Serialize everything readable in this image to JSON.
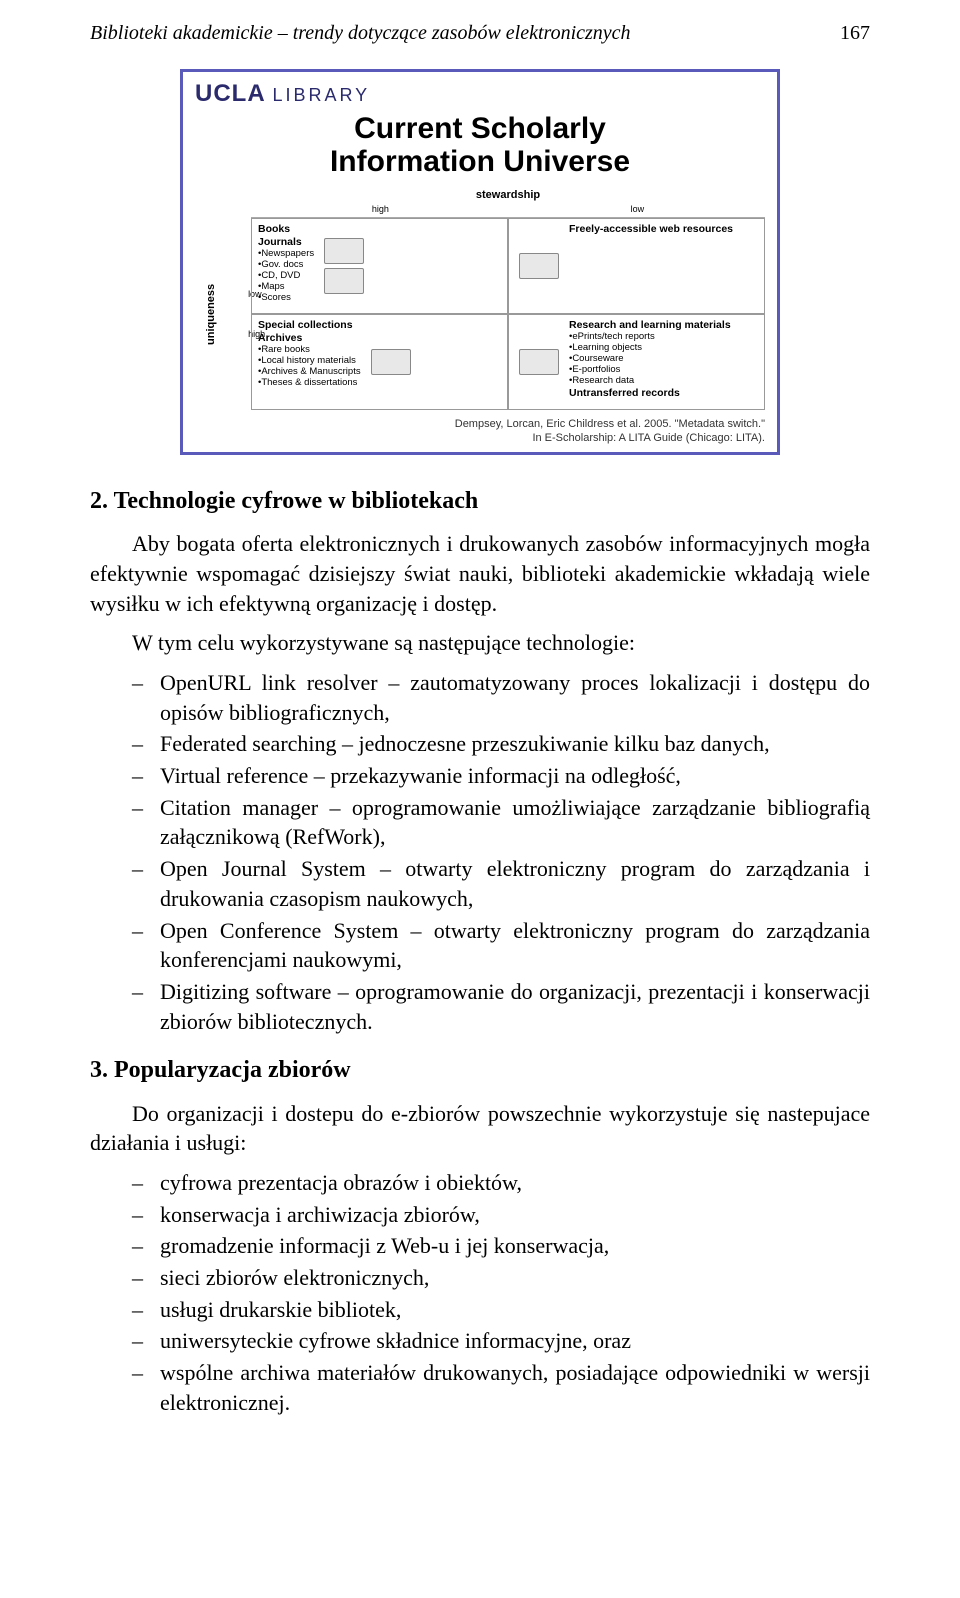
{
  "header": {
    "running_title": "Biblioteki akademickie – trendy dotyczące zasobów elektronicznych",
    "page_number": "167"
  },
  "slide": {
    "logo_main": "UCLA",
    "logo_sub": "LIBRARY",
    "title_line1": "Current Scholarly",
    "title_line2": "Information Universe",
    "axis_stewardship": "stewardship",
    "axis_uniqueness": "uniqueness",
    "scale_high": "high",
    "scale_low": "low",
    "q_tl_heading1": "Books",
    "q_tl_heading2": "Journals",
    "q_tl_items": "•Newspapers\n•Gov. docs\n•CD, DVD\n•Maps\n•Scores",
    "q_tr_heading": "Freely-accessible web resources",
    "q_bl_heading1": "Special collections",
    "q_bl_heading2": "Archives",
    "q_bl_items": "•Rare books\n•Local history materials\n•Archives & Manuscripts\n•Theses & dissertations",
    "q_br_heading1": "Research and learning materials",
    "q_br_items": "•ePrints/tech reports\n•Learning objects\n•Courseware\n•E-portfolios\n•Research data",
    "q_br_heading2": "Untransferred records",
    "citation_line1": "Dempsey, Lorcan, Eric Childress et al. 2005. \"Metadata switch.\"",
    "citation_line2": "In E-Scholarship: A LITA Guide (Chicago: LITA)."
  },
  "section2": {
    "heading": "2. Technologie cyfrowe w bibliotekach",
    "para1": "Aby bogata oferta elektronicznych i drukowanych zasobów informacyjnych mogła efektywnie wspomagać dzisiejszy świat nauki, biblioteki akademickie wkładają wiele wysiłku w ich efektywną organizację i dostęp.",
    "para2": "W tym celu wykorzystywane są następujące technologie:",
    "items": [
      "OpenURL link resolver – zautomatyzowany proces lokalizacji i dostępu do opisów bibliograficznych,",
      "Federated searching – jednoczesne przeszukiwanie kilku baz danych,",
      "Virtual reference – przekazywanie informacji na odległość,",
      "Citation manager – oprogramowanie umożliwiające zarządzanie bibliografią załącznikową   (RefWork),",
      "Open Journal System – otwarty elektroniczny program do zarządzania i drukowania czasopism   naukowych,",
      "Open Conference System – otwarty elektroniczny program do zarządzania konferencjami naukowymi,",
      "Digitizing software – oprogramowanie do organizacji, prezentacji i konserwacji zbiorów bibliotecznych."
    ]
  },
  "section3": {
    "heading": "3. Popularyzacja zbiorów",
    "para1": "Do organizacji i dostepu do e-zbiorów powszechnie wykorzystuje się nastepujace działania  i usługi:",
    "items": [
      "cyfrowa prezentacja obrazów i obiektów,",
      "konserwacja i archiwizacja zbiorów,",
      "gromadzenie informacji z Web-u i jej konserwacja,",
      "sieci zbiorów elektronicznych,",
      "usługi drukarskie bibliotek,",
      "uniwersyteckie cyfrowe składnice informacyjne, oraz",
      "wspólne archiwa materiałów drukowanych, posiadające odpowiedniki w wersji elektronicznej."
    ]
  }
}
